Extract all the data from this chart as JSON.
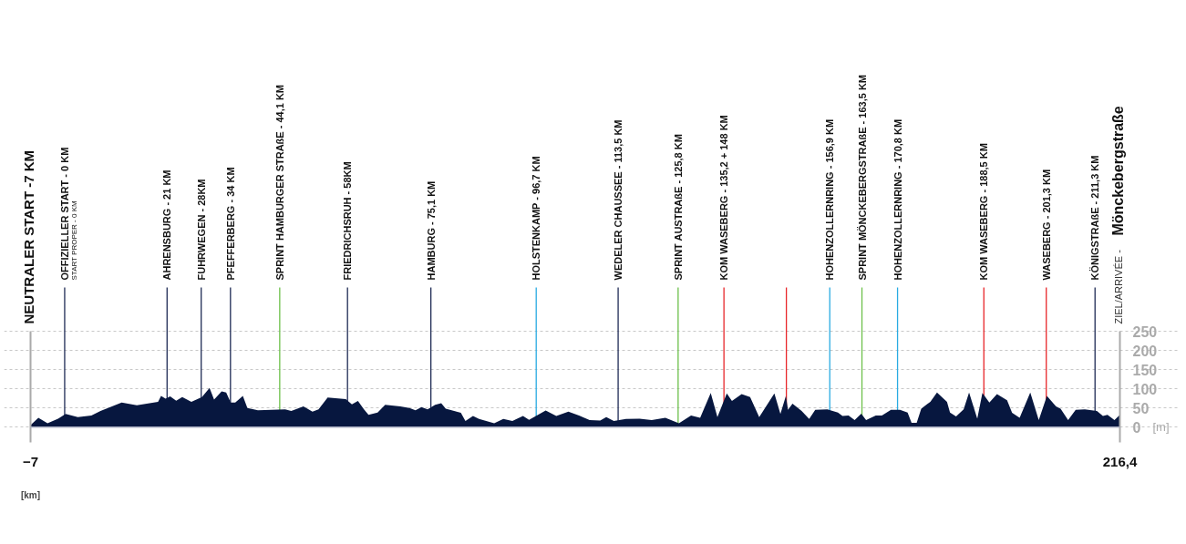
{
  "chart_data": {
    "type": "area",
    "x": [
      -7,
      -5.39,
      -3.52,
      -1.35,
      0.2,
      2.69,
      5.48,
      7.35,
      11.69,
      14.8,
      19.15,
      19.77,
      20.7,
      21.63,
      22.87,
      24.11,
      25.98,
      28.15,
      29.71,
      30.64,
      32.19,
      33.12,
      34.05,
      34.98,
      36.54,
      37.47,
      39.64,
      45.23,
      46.47,
      48.96,
      50.82,
      52.06,
      53.93,
      57.65,
      58.9,
      60.14,
      61.38,
      62.31,
      64.17,
      65.73,
      68.83,
      70.7,
      71.94,
      73.18,
      74.42,
      75.97,
      77.22,
      78.15,
      81.25,
      82.19,
      83.74,
      84.98,
      88.08,
      89.95,
      91.81,
      93.99,
      95.23,
      98.64,
      100.82,
      103.3,
      105.48,
      107.65,
      109.82,
      111.07,
      112.62,
      115.11,
      117.9,
      120.38,
      123.18,
      125.97,
      128.45,
      130.32,
      132.49,
      133.86,
      135.78,
      136.84,
      138.83,
      140.57,
      142.43,
      145.54,
      146.78,
      147.9,
      148.33,
      149.26,
      151.13,
      152.68,
      153.92,
      156.41,
      158.58,
      159.51,
      160.75,
      162.0,
      163.36,
      164.35,
      166.34,
      167.59,
      169.45,
      171.31,
      172.86,
      173.67,
      174.73,
      175.66,
      177.52,
      178.89,
      180.94,
      181.56,
      182.8,
      184.35,
      185.47,
      187.15,
      188.2,
      189.63,
      191.19,
      193.26,
      194.29,
      195.84,
      198.02,
      199.76,
      201.43,
      203.3,
      204.23,
      205.78,
      207.33,
      209.2,
      211.68,
      212.92,
      213.86,
      215.28,
      216.4
    ],
    "series": [
      {
        "color": "#07173f",
        "values": [
          5,
          24,
          10,
          22,
          34,
          26,
          30,
          42,
          64,
          57,
          66,
          81,
          74,
          80,
          69,
          78,
          66,
          78,
          102,
          72,
          93,
          90,
          64,
          64,
          81,
          50,
          44,
          46,
          42,
          54,
          40,
          46,
          77,
          73,
          59,
          68,
          46,
          32,
          38,
          58,
          54,
          50,
          44,
          52,
          46,
          58,
          62,
          48,
          37,
          16,
          29,
          21,
          10,
          21,
          16,
          29,
          19,
          43,
          29,
          40,
          30,
          18,
          17,
          26,
          16,
          21,
          22,
          18,
          24,
          10,
          30,
          24,
          89,
          26,
          88,
          68,
          86,
          78,
          26,
          88,
          34,
          81,
          45,
          61,
          42,
          21,
          45,
          46,
          38,
          29,
          30,
          18,
          35,
          18,
          30,
          30,
          45,
          45,
          38,
          11,
          11,
          48,
          66,
          90,
          66,
          38,
          28,
          46,
          90,
          22,
          89,
          64,
          86,
          70,
          37,
          24,
          90,
          18,
          81,
          54,
          48,
          18,
          45,
          46,
          42,
          29,
          32,
          18,
          32
        ]
      }
    ],
    "xlabel": "[km]",
    "ylabel": "[m]",
    "xlim": [
      -7,
      216.4
    ],
    "xticks": [
      -7,
      {
        "value": 216.4,
        "label": "216,4"
      }
    ],
    "ylim": [
      -40,
      250
    ],
    "yticks": [
      0,
      50,
      100,
      150,
      200,
      250
    ],
    "grid": "y",
    "ref_lines": [
      {
        "axis": "x",
        "value": 0,
        "label": "OFFIZIELLER START - 0 KM",
        "color": "#1f2b55"
      },
      {
        "axis": "x",
        "value": 21,
        "label": "AHRENSBURG - 21 KM",
        "color": "#1f2b55"
      },
      {
        "axis": "x",
        "value": 28,
        "label": "FUHRWEGEN - 28KM",
        "color": "#1f2b55"
      },
      {
        "axis": "x",
        "value": 34,
        "label": "PFEFFERBERG - 34 KM",
        "color": "#1f2b55"
      },
      {
        "axis": "x",
        "value": 44.1,
        "label": "SPRINT HAMBURGER STRAßE - 44,1 KM",
        "color": "#6cc04a"
      },
      {
        "axis": "x",
        "value": 58,
        "label": "FRIEDRICHSRUH - 58KM",
        "color": "#1f2b55"
      },
      {
        "axis": "x",
        "value": 75.1,
        "label": "HAMBURG - 75,1 KM",
        "color": "#1f2b55"
      },
      {
        "axis": "x",
        "value": 96.7,
        "label": "HOLSTENKAMP - 96,7 KM",
        "color": "#29abe2"
      },
      {
        "axis": "x",
        "value": 113.5,
        "label": "WEDELER CHAUSSEE - 113,5 KM",
        "color": "#1f2b55"
      },
      {
        "axis": "x",
        "value": 125.8,
        "label": "SPRINT AUSTRAßE - 125,8 KM",
        "color": "#6cc04a"
      },
      {
        "axis": "x",
        "value": 135.2,
        "label": "KOM WASEBERG - 135,2 + 148 KM",
        "color": "#e8262a"
      },
      {
        "axis": "x",
        "value": 148,
        "label": null,
        "color": "#e8262a"
      },
      {
        "axis": "x",
        "value": 156.9,
        "label": "HOHENZOLLERNRING - 156,9 KM",
        "color": "#29abe2"
      },
      {
        "axis": "x",
        "value": 163.5,
        "label": "SPRINT MÖNCKEBERGSTRAßE - 163,5 KM",
        "color": "#6cc04a"
      },
      {
        "axis": "x",
        "value": 170.8,
        "label": "HOHENZOLLERNRING - 170,8 KM",
        "color": "#29abe2"
      },
      {
        "axis": "x",
        "value": 188.5,
        "label": "KOM WASEBERG - 188,5 KM",
        "color": "#e8262a"
      },
      {
        "axis": "x",
        "value": 201.3,
        "label": "WASEBERG - 201,3 KM",
        "color": "#e8262a"
      },
      {
        "axis": "x",
        "value": 211.3,
        "label": "KÖNIGSTRAßE - 211,3 KM",
        "color": "#1f2b55"
      }
    ],
    "annotations": [
      "NEUTRALER START -7 KM",
      "START PROPER - 0 KM",
      "ZIEL/ARRIVÉE -",
      "Mönckebergstraße"
    ]
  }
}
